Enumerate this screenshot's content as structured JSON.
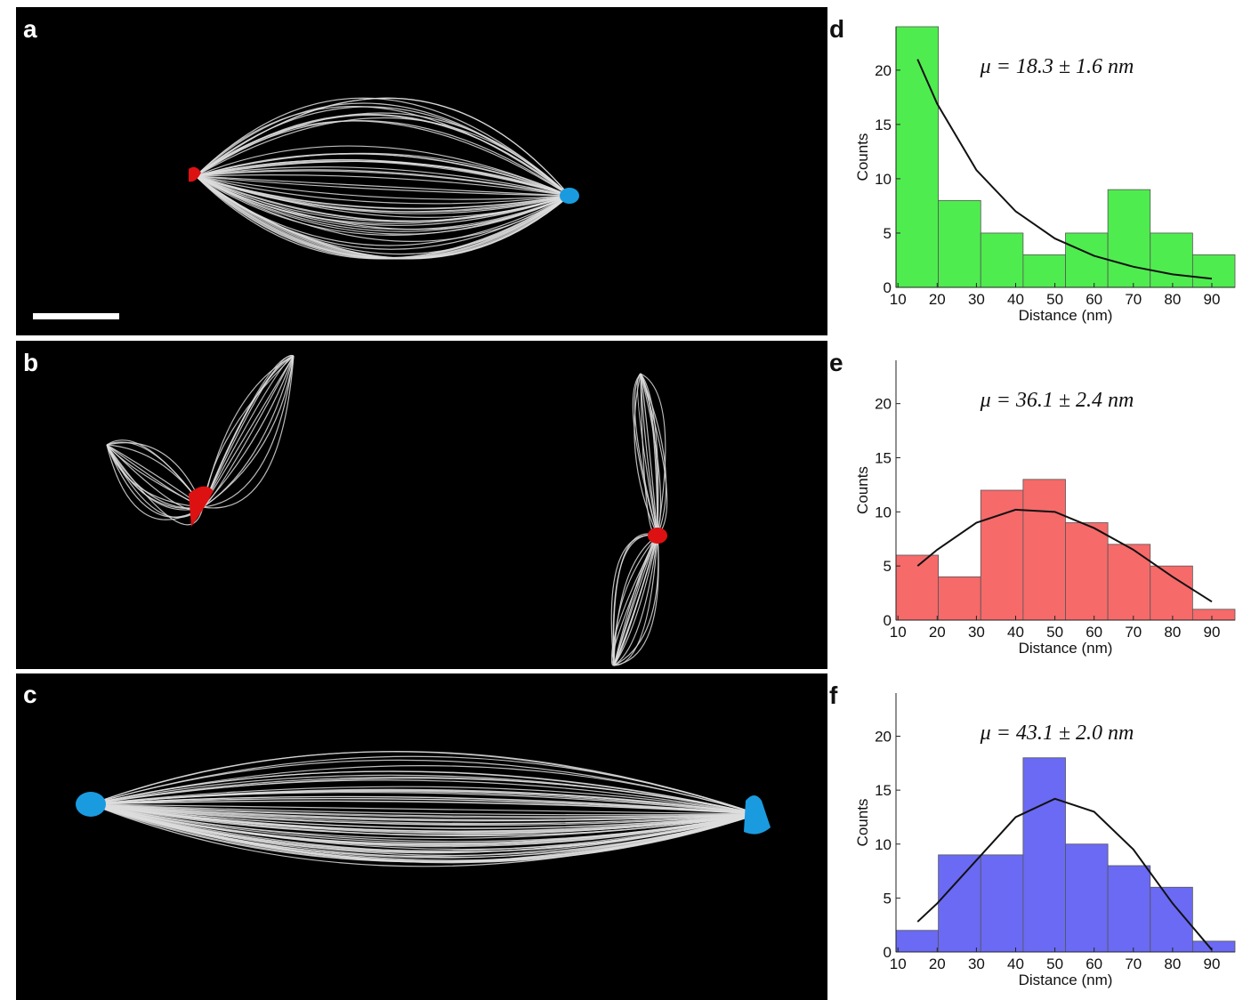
{
  "image_panels": [
    {
      "label": "a"
    },
    {
      "label": "b"
    },
    {
      "label": "c"
    }
  ],
  "chart_data": [
    {
      "type": "histogram",
      "panel": "d",
      "annotation": "μ = 18.3 ± 1.6 nm",
      "color": "#4fec4f",
      "bins": [
        9.5,
        20.3,
        31.1,
        41.9,
        52.7,
        63.5,
        74.3,
        85.1,
        95.9
      ],
      "values": [
        24,
        8,
        5,
        3,
        5,
        9,
        5,
        3
      ],
      "fit": {
        "x": [
          15,
          20,
          30,
          40,
          50,
          60,
          70,
          80,
          90
        ],
        "values": [
          21,
          16.9,
          10.8,
          7,
          4.5,
          2.9,
          1.9,
          1.2,
          0.8
        ]
      },
      "xlabel": "Distance (nm)",
      "ylabel": "Counts",
      "xlim": [
        9.5,
        95.9
      ],
      "ylim": [
        0,
        24
      ],
      "xticks": [
        10,
        20,
        30,
        40,
        50,
        60,
        70,
        80,
        90
      ],
      "yticks": [
        0,
        5,
        10,
        15,
        20
      ]
    },
    {
      "type": "histogram",
      "panel": "e",
      "annotation": "μ = 36.1 ± 2.4 nm",
      "color": "#f66a6a",
      "bins": [
        9.5,
        20.3,
        31.1,
        41.9,
        52.7,
        63.5,
        74.3,
        85.1,
        95.9
      ],
      "values": [
        6,
        4,
        12,
        13,
        9,
        7,
        5,
        1
      ],
      "fit": {
        "x": [
          15,
          20,
          30,
          40,
          50,
          60,
          70,
          80,
          90
        ],
        "values": [
          5,
          6.5,
          9,
          10.2,
          10,
          8.5,
          6.5,
          4,
          1.7
        ]
      },
      "xlabel": "Distance (nm)",
      "ylabel": "Counts",
      "xlim": [
        9.5,
        95.9
      ],
      "ylim": [
        0,
        24
      ],
      "xticks": [
        10,
        20,
        30,
        40,
        50,
        60,
        70,
        80,
        90
      ],
      "yticks": [
        0,
        5,
        10,
        15,
        20
      ]
    },
    {
      "type": "histogram",
      "panel": "f",
      "annotation": "μ = 43.1 ± 2.0 nm",
      "color": "#6a6af4",
      "bins": [
        9.5,
        20.3,
        31.1,
        41.9,
        52.7,
        63.5,
        74.3,
        85.1,
        95.9
      ],
      "values": [
        2,
        9,
        9,
        18,
        10,
        8,
        6,
        1
      ],
      "fit": {
        "x": [
          15,
          20,
          30,
          40,
          50,
          60,
          70,
          80,
          90
        ],
        "values": [
          2.8,
          4.5,
          8.5,
          12.5,
          14.2,
          13,
          9.5,
          4.5,
          0.2
        ]
      },
      "xlabel": "Distance (nm)",
      "ylabel": "Counts",
      "xlim": [
        9.5,
        95.9
      ],
      "ylim": [
        0,
        24
      ],
      "xticks": [
        10,
        20,
        30,
        40,
        50,
        60,
        70,
        80,
        90
      ],
      "yticks": [
        0,
        5,
        10,
        15,
        20
      ]
    }
  ]
}
